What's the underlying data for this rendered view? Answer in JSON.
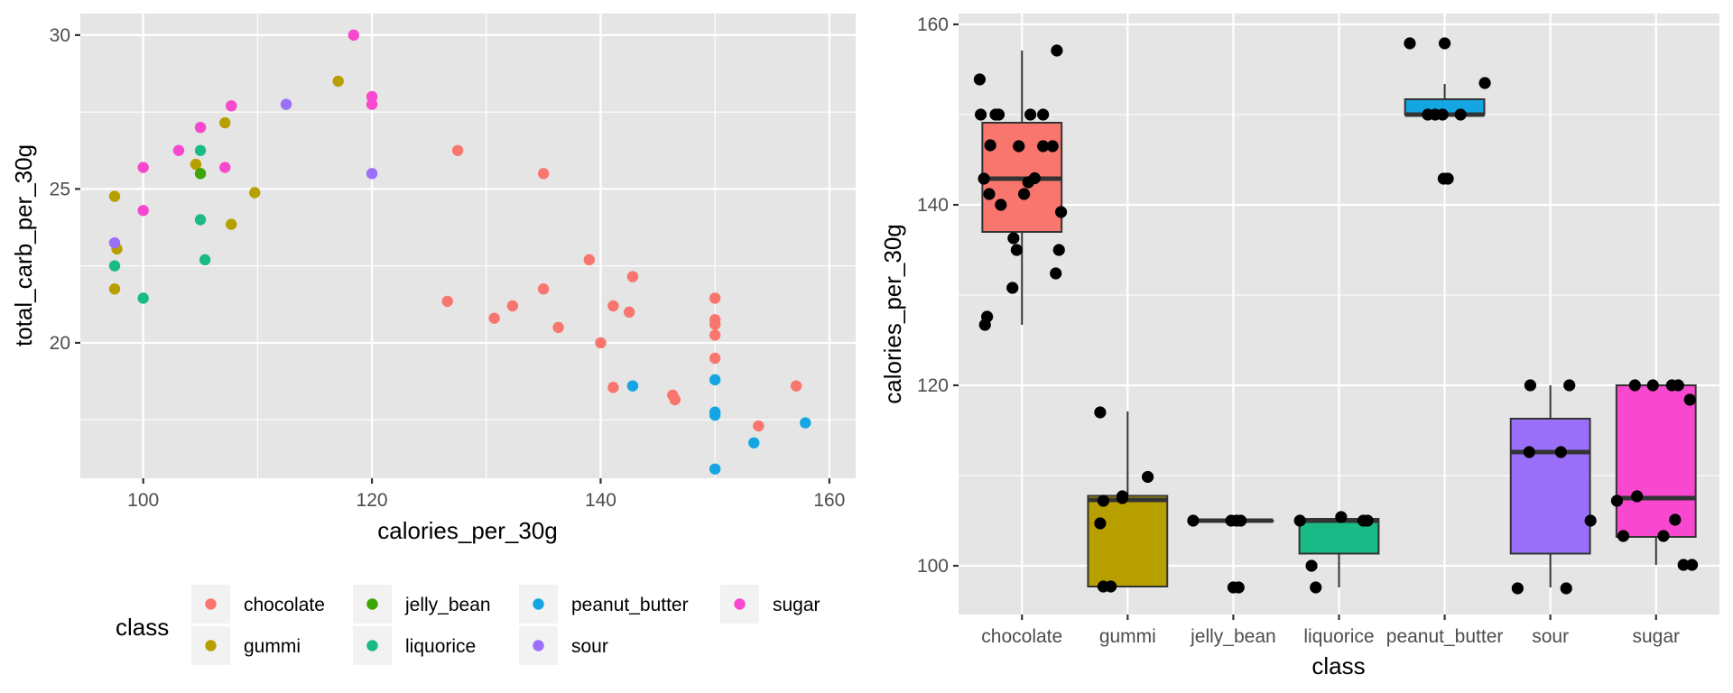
{
  "chart_data": [
    {
      "type": "scatter",
      "title": "",
      "xlabel": "calories_per_30g",
      "ylabel": "total_carb_per_30g",
      "xlim": [
        94.5,
        162.3
      ],
      "ylim": [
        15.6,
        30.7
      ],
      "xticks": [
        100,
        120,
        140,
        160
      ],
      "yticks": [
        20,
        25,
        30
      ],
      "xtick_labels": [
        "100",
        "120",
        "140",
        "160"
      ],
      "ytick_labels": [
        "20",
        "25",
        "30"
      ],
      "grid": true,
      "legend": {
        "title": "class",
        "placement": "bottom",
        "entries": [
          {
            "label": "chocolate",
            "color": "#F8766D"
          },
          {
            "label": "gummi",
            "color": "#B79F00"
          },
          {
            "label": "jelly_bean",
            "color": "#3CA508"
          },
          {
            "label": "liquorice",
            "color": "#1ABA86"
          },
          {
            "label": "peanut_butter",
            "color": "#14A6E3"
          },
          {
            "label": "sour",
            "color": "#9A70FA"
          },
          {
            "label": "sugar",
            "color": "#F748CF"
          }
        ]
      },
      "series": [
        {
          "name": "chocolate",
          "color": "#F8766D",
          "points": [
            [
              127.5,
              26.25
            ],
            [
              135,
              25.5
            ],
            [
              139,
              22.7
            ],
            [
              142.8,
              22.15
            ],
            [
              135,
              21.75
            ],
            [
              126.6,
              21.35
            ],
            [
              132.3,
              21.2
            ],
            [
              141.1,
              21.2
            ],
            [
              142.5,
              21.0
            ],
            [
              130.7,
              20.8
            ],
            [
              136.3,
              20.5
            ],
            [
              140,
              20.0
            ],
            [
              150,
              21.45
            ],
            [
              150,
              20.75
            ],
            [
              150,
              20.6
            ],
            [
              150,
              20.25
            ],
            [
              150,
              19.5
            ],
            [
              141.1,
              18.55
            ],
            [
              146.3,
              18.3
            ],
            [
              146.5,
              18.15
            ],
            [
              157.1,
              18.6
            ],
            [
              153.8,
              17.3
            ]
          ]
        },
        {
          "name": "gummi",
          "color": "#B79F00",
          "points": [
            [
              117.05,
              28.5
            ],
            [
              107.15,
              27.15
            ],
            [
              104.6,
              25.8
            ],
            [
              109.75,
              24.88
            ],
            [
              97.5,
              24.76
            ],
            [
              107.7,
              23.85
            ],
            [
              97.7,
              23.05
            ],
            [
              97.5,
              21.75
            ]
          ]
        },
        {
          "name": "jelly_bean",
          "color": "#3CA508",
          "points": [
            [
              105,
              25.5
            ]
          ]
        },
        {
          "name": "liquorice",
          "color": "#1ABA86",
          "points": [
            [
              105,
              26.25
            ],
            [
              105,
              24.0
            ],
            [
              97.5,
              22.5
            ],
            [
              105.4,
              22.7
            ],
            [
              100,
              21.45
            ]
          ]
        },
        {
          "name": "peanut_butter",
          "color": "#14A6E3",
          "points": [
            [
              142.8,
              18.6
            ],
            [
              150,
              18.8
            ],
            [
              150,
              17.75
            ],
            [
              150,
              17.65
            ],
            [
              153.4,
              16.75
            ],
            [
              157.9,
              17.4
            ],
            [
              150,
              15.9
            ]
          ]
        },
        {
          "name": "sour",
          "color": "#9A70FA",
          "points": [
            [
              112.5,
              27.75
            ],
            [
              120,
              25.5
            ],
            [
              97.5,
              23.25
            ]
          ]
        },
        {
          "name": "sugar",
          "color": "#F748CF",
          "points": [
            [
              118.4,
              30.0
            ],
            [
              120,
              28.0
            ],
            [
              120,
              27.75
            ],
            [
              107.7,
              27.7
            ],
            [
              105,
              27.0
            ],
            [
              103.1,
              26.25
            ],
            [
              107.15,
              25.7
            ],
            [
              100,
              25.7
            ],
            [
              100,
              24.3
            ]
          ]
        }
      ]
    },
    {
      "type": "box",
      "title": "",
      "xlabel": "class",
      "ylabel": "calories_per_30g",
      "ylim": [
        94.6,
        161.2
      ],
      "yticks": [
        100,
        120,
        140,
        160
      ],
      "ytick_labels": [
        "100",
        "120",
        "140",
        "160"
      ],
      "categories": [
        "chocolate",
        "gummi",
        "jelly_bean",
        "liquorice",
        "peanut_butter",
        "sour",
        "sugar"
      ],
      "grid": true,
      "boxes": [
        {
          "category": "chocolate",
          "color": "#F8766D",
          "min": 126.7,
          "q1": 137.0,
          "median": 142.9,
          "q3": 149.1,
          "max": 157.1,
          "points": [
            [
              -0.4,
              153.9
            ],
            [
              0.33,
              157.1
            ],
            [
              -0.39,
              150
            ],
            [
              -0.25,
              150
            ],
            [
              -0.22,
              150
            ],
            [
              0.08,
              150
            ],
            [
              0.2,
              150
            ],
            [
              -0.3,
              146.6
            ],
            [
              -0.03,
              146.5
            ],
            [
              0.2,
              146.5
            ],
            [
              0.29,
              146.5
            ],
            [
              -0.36,
              142.9
            ],
            [
              0.12,
              142.95
            ],
            [
              0.06,
              142.5
            ],
            [
              -0.31,
              141.2
            ],
            [
              0.02,
              141.2
            ],
            [
              -0.2,
              140.0
            ],
            [
              0.37,
              139.2
            ],
            [
              -0.08,
              136.3
            ],
            [
              -0.05,
              135.0
            ],
            [
              0.35,
              135.0
            ],
            [
              0.32,
              132.4
            ],
            [
              -0.09,
              130.8
            ],
            [
              -0.33,
              127.6
            ],
            [
              -0.35,
              126.7
            ]
          ]
        },
        {
          "category": "gummi",
          "color": "#B79F00",
          "min": 97.7,
          "q1": 97.7,
          "median": 107.3,
          "q3": 107.75,
          "max": 117.1,
          "points": [
            [
              -0.26,
              117.0
            ],
            [
              0.19,
              109.85
            ],
            [
              -0.23,
              107.2
            ],
            [
              -0.05,
              107.5
            ],
            [
              -0.05,
              107.7
            ],
            [
              -0.26,
              104.7
            ],
            [
              -0.23,
              97.7
            ],
            [
              -0.16,
              97.7
            ]
          ]
        },
        {
          "category": "jelly_bean",
          "color": "#3CA508",
          "min": 105.0,
          "q1": 105.0,
          "median": 105.0,
          "q3": 105.0,
          "max": 105.0,
          "points": [
            [
              -0.38,
              105.0
            ],
            [
              -0.02,
              105.0
            ],
            [
              0.03,
              105.0
            ],
            [
              0.07,
              105.0
            ],
            [
              0.0,
              97.6
            ],
            [
              0.05,
              97.6
            ]
          ]
        },
        {
          "category": "liquorice",
          "color": "#1ABA86",
          "min": 97.6,
          "q1": 101.35,
          "median": 105.0,
          "q3": 105.2,
          "max": 105.2,
          "points": [
            [
              -0.37,
              105.0
            ],
            [
              0.02,
              105.4
            ],
            [
              0.23,
              105.0
            ],
            [
              0.27,
              105.0
            ],
            [
              -0.26,
              100.0
            ],
            [
              -0.22,
              97.6
            ]
          ]
        },
        {
          "category": "peanut_butter",
          "color": "#14A6E3",
          "min": 150.0,
          "q1": 150.0,
          "median": 150.0,
          "q3": 151.7,
          "max": 153.4,
          "points": [
            [
              -0.33,
              157.9
            ],
            [
              0.0,
              157.9
            ],
            [
              0.38,
              153.5
            ],
            [
              -0.16,
              150
            ],
            [
              -0.09,
              150
            ],
            [
              -0.02,
              150
            ],
            [
              0.15,
              150
            ],
            [
              -0.01,
              142.9
            ],
            [
              0.03,
              142.9
            ]
          ]
        },
        {
          "category": "sour",
          "color": "#9A70FA",
          "min": 97.6,
          "q1": 101.35,
          "median": 112.6,
          "q3": 116.3,
          "max": 120.0,
          "points": [
            [
              -0.19,
              120.0
            ],
            [
              0.18,
              120.0
            ],
            [
              -0.2,
              112.6
            ],
            [
              0.1,
              112.6
            ],
            [
              0.38,
              105.0
            ],
            [
              -0.31,
              97.5
            ],
            [
              0.15,
              97.5
            ]
          ]
        },
        {
          "category": "sugar",
          "color": "#F748CF",
          "min": 100.1,
          "q1": 103.2,
          "median": 107.5,
          "q3": 120.0,
          "max": 120.0,
          "points": [
            [
              -0.2,
              120.0
            ],
            [
              -0.03,
              120.0
            ],
            [
              0.15,
              120.0
            ],
            [
              0.21,
              120.0
            ],
            [
              0.32,
              118.4
            ],
            [
              -0.37,
              107.2
            ],
            [
              -0.18,
              107.7
            ],
            [
              0.18,
              105.1
            ],
            [
              -0.31,
              103.3
            ],
            [
              0.07,
              103.3
            ],
            [
              0.26,
              100.1
            ],
            [
              0.34,
              100.1
            ]
          ]
        }
      ]
    }
  ]
}
